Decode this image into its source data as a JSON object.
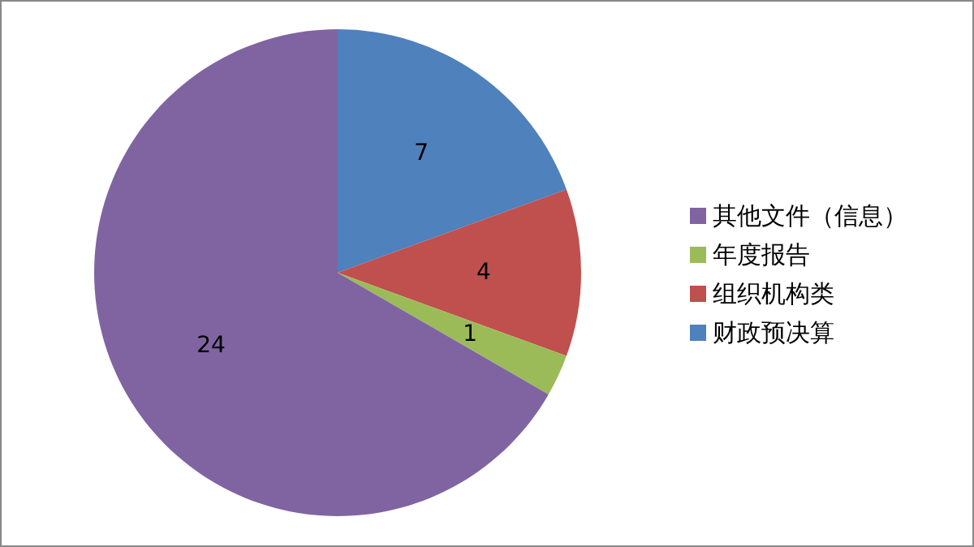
{
  "chart_data": {
    "type": "pie",
    "categories": [
      "财政预决算",
      "组织机构类",
      "年度报告",
      "其他文件（信息）"
    ],
    "values": [
      7,
      4,
      1,
      24
    ],
    "colors": [
      "#4f81bd",
      "#c0504d",
      "#9bbb59",
      "#8064a2"
    ],
    "data_labels": true,
    "legend": "right"
  }
}
